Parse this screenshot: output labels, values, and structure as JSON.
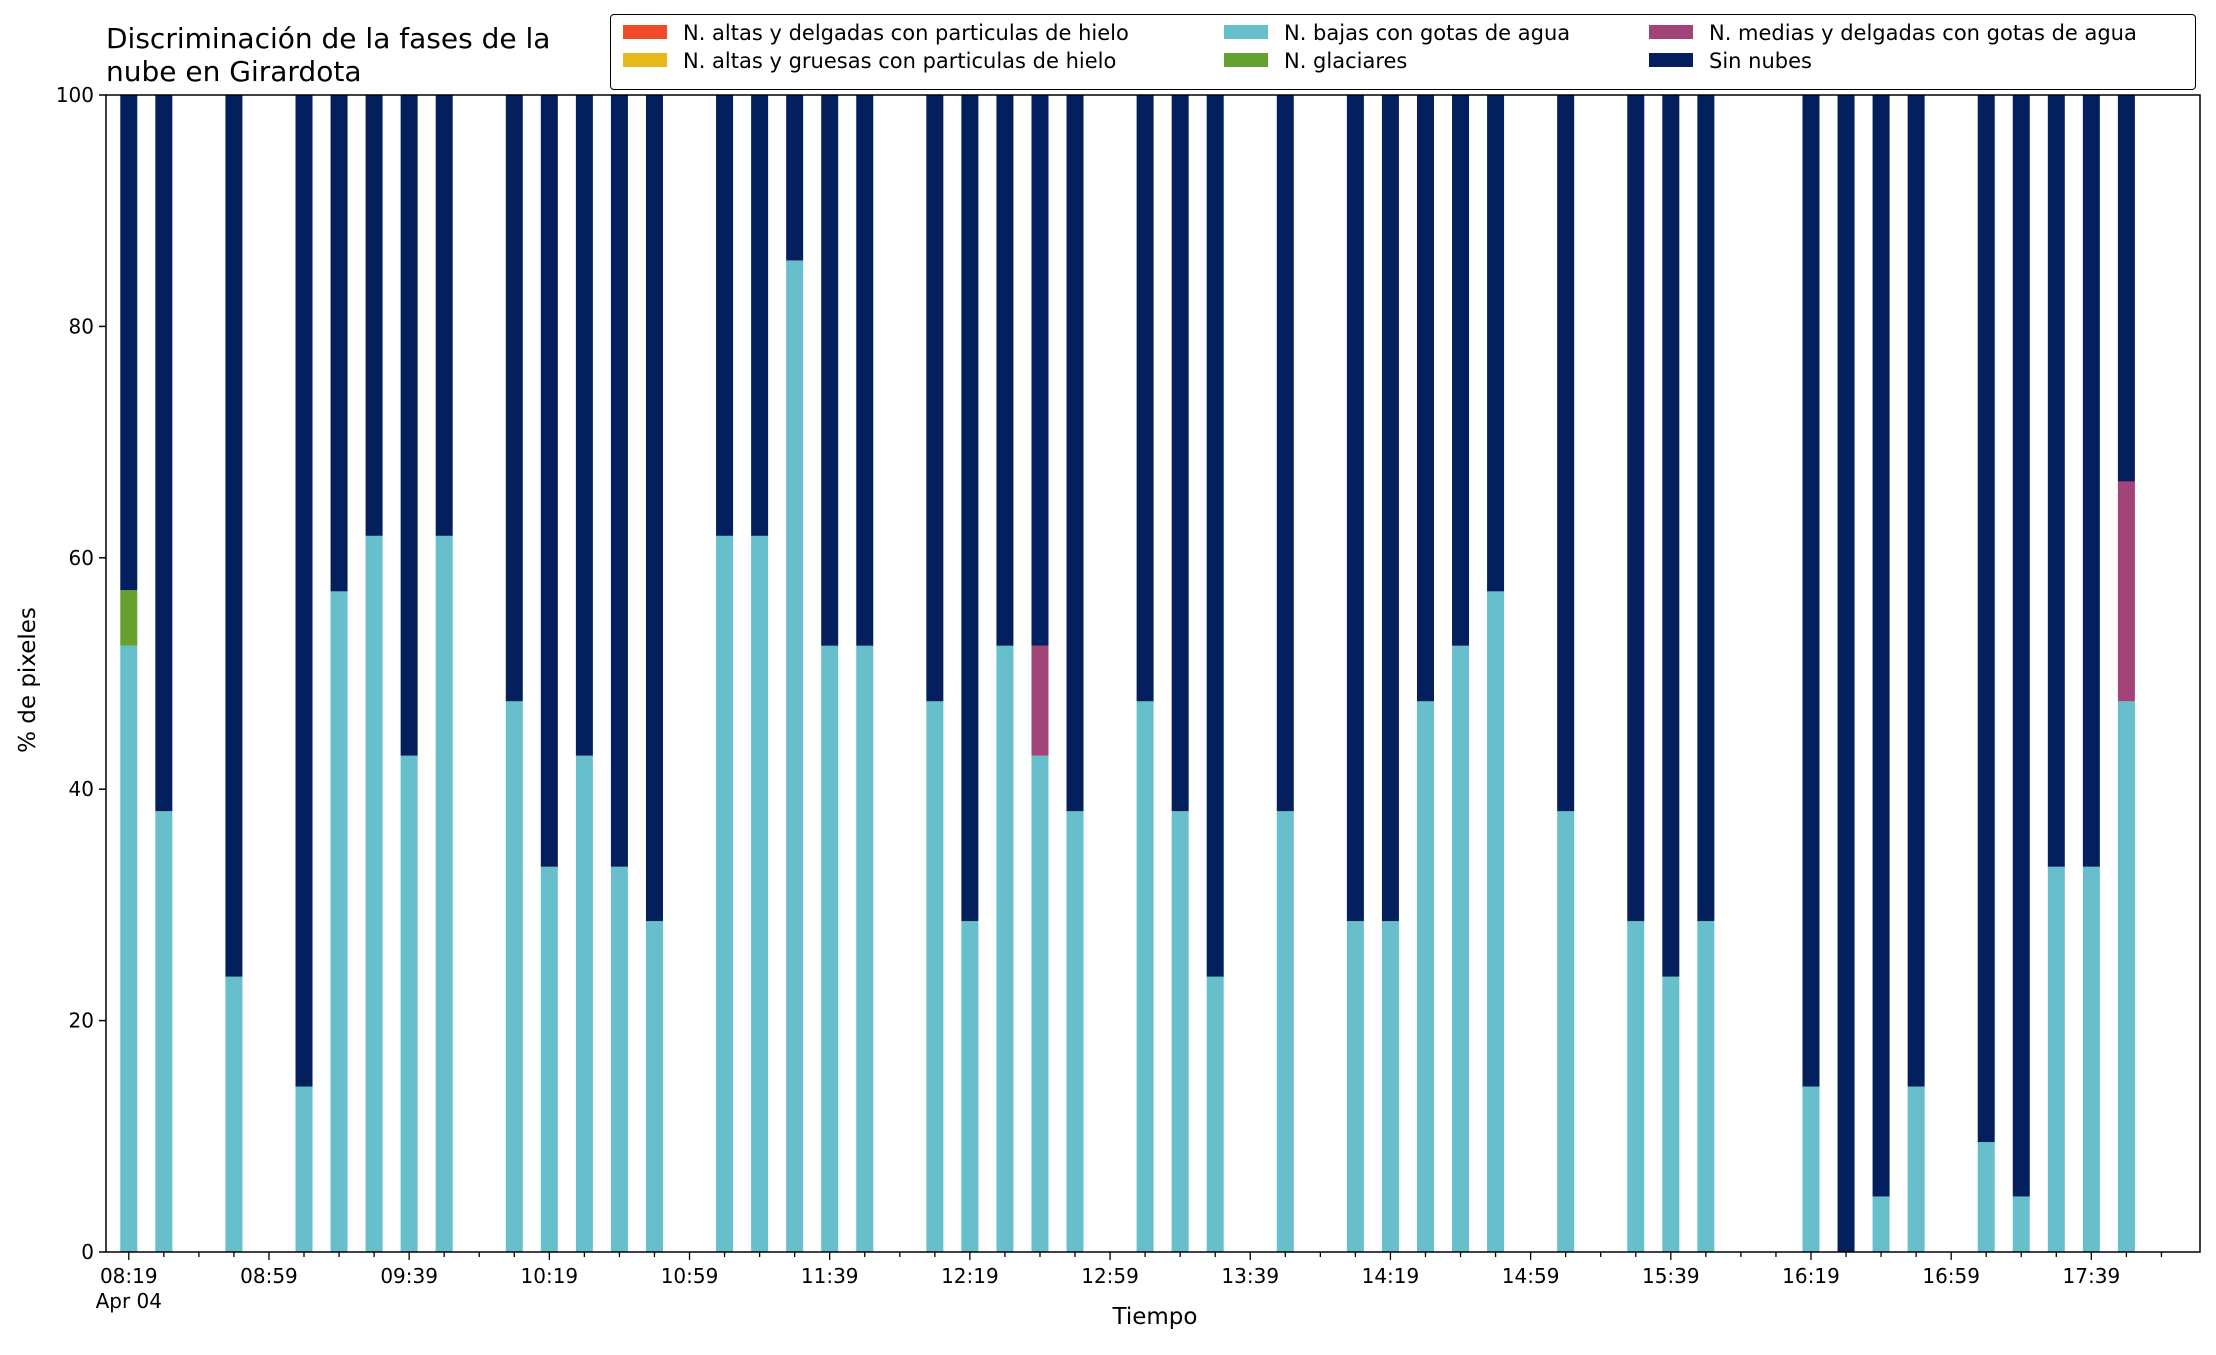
{
  "title": "Discriminación de la fases de la\nnube en Girardota",
  "chart_data": {
    "type": "bar",
    "stacked": true,
    "title": "Discriminación de la fases de la\nnube en Girardota",
    "xlabel": "Tiempo",
    "ylabel": "% de pixeles",
    "ylim": [
      0,
      100
    ],
    "yticks": [
      0,
      20,
      40,
      60,
      80,
      100
    ],
    "xtick_labels": [
      "08:19",
      "08:59",
      "09:39",
      "10:19",
      "10:59",
      "11:39",
      "12:19",
      "12:59",
      "13:39",
      "14:19",
      "14:59",
      "15:39",
      "16:19",
      "16:59",
      "17:39"
    ],
    "xtick_sublabel": "Apr 04",
    "x_start": "08:19",
    "x_end": "17:59",
    "minute_step": 10,
    "legend_position": "top-right",
    "grid": false,
    "categories": [
      "08:19",
      "08:29",
      "08:39",
      "08:49",
      "08:59",
      "09:09",
      "09:19",
      "09:29",
      "09:39",
      "09:49",
      "09:59",
      "10:09",
      "10:19",
      "10:29",
      "10:39",
      "10:49",
      "10:59",
      "11:09",
      "11:19",
      "11:29",
      "11:39",
      "11:49",
      "11:59",
      "12:09",
      "12:19",
      "12:29",
      "12:39",
      "12:49",
      "12:59",
      "13:09",
      "13:19",
      "13:29",
      "13:39",
      "13:49",
      "13:59",
      "14:09",
      "14:19",
      "14:29",
      "14:39",
      "14:49",
      "14:59",
      "15:09",
      "15:19",
      "15:29",
      "15:39",
      "15:49",
      "15:59",
      "16:09",
      "16:19",
      "16:29",
      "16:39",
      "16:49",
      "16:59",
      "17:09",
      "17:19",
      "17:29",
      "17:39",
      "17:49",
      "17:59"
    ],
    "series": [
      {
        "name": "N. altas y delgadas con particulas de hielo",
        "color": "#ef4a2a",
        "values": [
          0,
          0,
          null,
          0,
          null,
          0,
          0,
          0,
          0,
          0,
          null,
          0,
          0,
          0,
          0,
          0,
          null,
          0,
          0,
          0,
          0,
          0,
          null,
          0,
          0,
          0,
          0,
          0,
          null,
          0,
          0,
          0,
          null,
          0,
          null,
          0,
          0,
          0,
          0,
          0,
          null,
          0,
          null,
          0,
          0,
          0,
          null,
          null,
          0,
          0,
          0,
          0,
          null,
          0,
          0,
          0,
          0,
          0,
          0
        ]
      },
      {
        "name": "N. altas y gruesas con particulas de hielo",
        "color": "#e6b81a",
        "values": [
          0,
          0,
          null,
          0,
          null,
          0,
          0,
          0,
          0,
          0,
          null,
          0,
          0,
          0,
          0,
          0,
          null,
          0,
          0,
          0,
          0,
          0,
          null,
          0,
          0,
          0,
          0,
          0,
          null,
          0,
          0,
          0,
          null,
          0,
          null,
          0,
          0,
          0,
          0,
          0,
          null,
          0,
          null,
          0,
          0,
          0,
          null,
          null,
          0,
          0,
          0,
          0,
          null,
          0,
          0,
          0,
          0,
          0,
          0
        ]
      },
      {
        "name": "N. bajas con gotas de agua",
        "color": "#67bfcb",
        "values": [
          52.4,
          38.1,
          null,
          23.8,
          null,
          14.3,
          57.1,
          61.9,
          42.9,
          61.9,
          null,
          47.6,
          33.3,
          42.9,
          33.3,
          28.6,
          null,
          61.9,
          61.9,
          85.7,
          52.4,
          52.4,
          null,
          47.6,
          28.6,
          52.4,
          42.9,
          38.1,
          null,
          47.6,
          38.1,
          23.8,
          null,
          38.1,
          null,
          28.6,
          28.6,
          47.6,
          52.4,
          57.1,
          null,
          38.1,
          null,
          28.6,
          23.8,
          28.6,
          null,
          null,
          14.3,
          0,
          4.8,
          14.3,
          null,
          9.5,
          4.8,
          33.3,
          33.3,
          47.6,
          0
        ]
      },
      {
        "name": "N. glaciares",
        "color": "#65a12f",
        "values": [
          4.8,
          0,
          null,
          0,
          null,
          0,
          0,
          0,
          0,
          0,
          null,
          0,
          0,
          0,
          0,
          0,
          null,
          0,
          0,
          0,
          0,
          0,
          null,
          0,
          0,
          0,
          0,
          0,
          null,
          0,
          0,
          0,
          null,
          0,
          null,
          0,
          0,
          0,
          0,
          0,
          null,
          0,
          null,
          0,
          0,
          0,
          null,
          null,
          0,
          0,
          0,
          0,
          null,
          0,
          0,
          0,
          0,
          0,
          0
        ]
      },
      {
        "name": "N. medias y delgadas con gotas de agua",
        "color": "#a2447a",
        "values": [
          0,
          0,
          null,
          0,
          null,
          0,
          0,
          0,
          0,
          0,
          null,
          0,
          0,
          0,
          0,
          0,
          null,
          0,
          0,
          0,
          0,
          0,
          null,
          0,
          0,
          0,
          9.5,
          0,
          null,
          0,
          0,
          0,
          null,
          0,
          null,
          0,
          0,
          0,
          0,
          0,
          null,
          0,
          null,
          0,
          0,
          0,
          null,
          null,
          0,
          0,
          0,
          0,
          null,
          0,
          0,
          0,
          0,
          19.0,
          0
        ]
      },
      {
        "name": "Sin nubes",
        "color": "#041f5e",
        "values": [
          42.8,
          61.9,
          null,
          76.2,
          null,
          85.7,
          42.9,
          38.1,
          57.1,
          38.1,
          null,
          52.4,
          66.7,
          57.1,
          66.7,
          71.4,
          null,
          38.1,
          38.1,
          14.3,
          47.6,
          47.6,
          null,
          52.4,
          71.4,
          47.6,
          47.6,
          61.9,
          null,
          52.4,
          61.9,
          76.2,
          null,
          61.9,
          null,
          71.4,
          71.4,
          52.4,
          47.6,
          42.9,
          null,
          61.9,
          null,
          71.4,
          76.2,
          71.4,
          null,
          null,
          85.7,
          100,
          95.2,
          85.7,
          null,
          90.5,
          95.2,
          66.7,
          66.7,
          33.4,
          0
        ]
      }
    ]
  }
}
